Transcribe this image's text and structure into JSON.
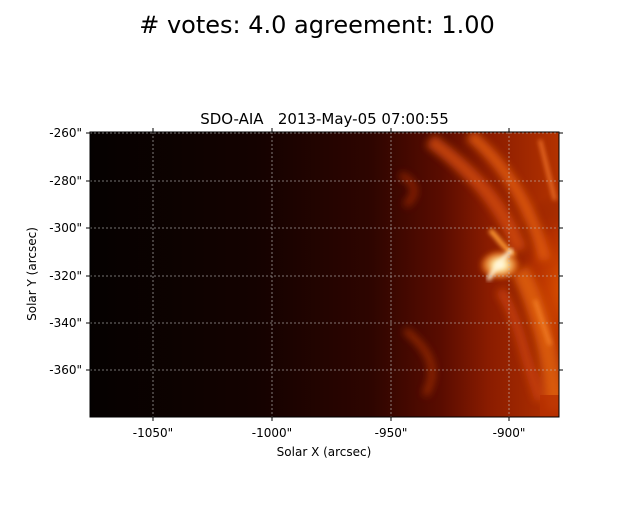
{
  "suptitle": "# votes: 4.0 agreement: 1.00",
  "plot": {
    "title": "SDO-AIA   2013-May-05 07:00:55",
    "xlabel": "Solar X (arcsec)",
    "ylabel": "Solar Y (arcsec)",
    "x_ticks": [
      "-1050\"",
      "-1000\"",
      "-950\"",
      "-900\""
    ],
    "y_ticks": [
      "-260\"",
      "-280\"",
      "-300\"",
      "-320\"",
      "-340\"",
      "-360\""
    ],
    "colormap": "sdoaia-hot",
    "colors": {
      "dark": "#050100",
      "mid": "#5a0c00",
      "bright": "#d44a00",
      "hot": "#ffe8a0",
      "grid": "#bfbfbf"
    }
  }
}
